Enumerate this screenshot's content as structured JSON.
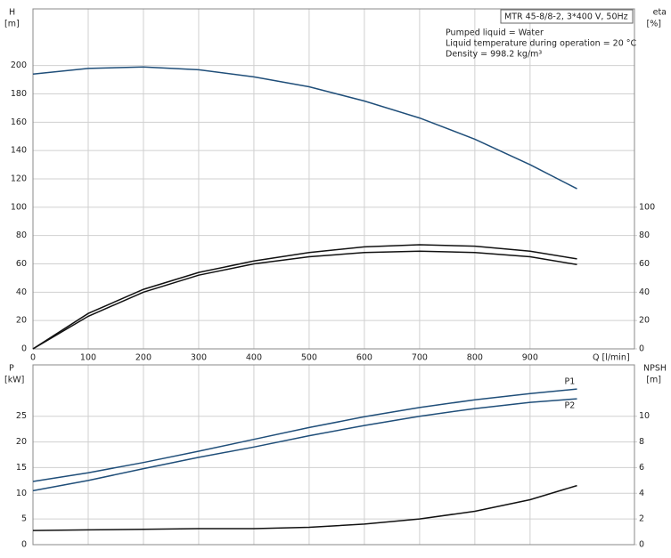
{
  "chart_data": [
    {
      "type": "line",
      "y_label": "H",
      "y_unit": "[m]",
      "y2_label": "eta",
      "y2_unit": "[%]",
      "x_label": "Q [l/min]",
      "annotations": [
        "MTR 45-8/8-2, 3*400 V, 50Hz",
        "Pumped liquid = Water",
        "Liquid temperature during operation = 20 °C",
        "Density = 998.2 kg/m³"
      ],
      "x": [
        0,
        100,
        200,
        300,
        400,
        500,
        600,
        700,
        800,
        900,
        985
      ],
      "series": [
        {
          "color": "#1f4e79",
          "values": [
            194,
            198,
            199,
            197,
            192,
            185,
            175,
            163,
            148,
            130,
            113
          ]
        },
        {
          "color": "#111111",
          "axis": "y2",
          "values": [
            0,
            25,
            42,
            54,
            62,
            68,
            72,
            73.5,
            72.5,
            69,
            63.5
          ]
        },
        {
          "color": "#111111",
          "axis": "y2",
          "values": [
            0,
            23,
            40,
            52,
            60,
            65,
            68,
            69,
            68,
            65,
            59.5
          ]
        }
      ],
      "xlim": [
        0,
        1089
      ],
      "xticks": [
        0,
        100,
        200,
        300,
        400,
        500,
        600,
        700,
        800,
        900
      ],
      "ylim": [
        0,
        240
      ],
      "yticks": [
        0,
        20,
        40,
        60,
        80,
        100,
        120,
        140,
        160,
        180,
        200
      ],
      "y2lim": [
        0,
        240
      ],
      "y2ticks": [
        0,
        20,
        40,
        60,
        80,
        100
      ],
      "grid": true
    },
    {
      "type": "line",
      "y_label": "P",
      "y_unit": "[kW]",
      "y2_label": "NPSH",
      "y2_unit": "[m]",
      "x": [
        0,
        100,
        200,
        300,
        400,
        500,
        600,
        700,
        800,
        900,
        985
      ],
      "series": [
        {
          "name": "P1",
          "color": "#1f4e79",
          "values": [
            12.3,
            14,
            16,
            18.2,
            20.5,
            22.8,
            24.9,
            26.7,
            28.2,
            29.4,
            30.3
          ]
        },
        {
          "name": "P2",
          "color": "#1f4e79",
          "values": [
            10.5,
            12.5,
            14.8,
            17,
            19,
            21.2,
            23.2,
            25,
            26.5,
            27.7,
            28.4
          ]
        },
        {
          "color": "#111111",
          "axis": "y2",
          "values": [
            1.1,
            1.15,
            1.2,
            1.25,
            1.25,
            1.35,
            1.6,
            2.0,
            2.6,
            3.5,
            4.6
          ]
        }
      ],
      "xlim": [
        0,
        1089
      ],
      "ylim": [
        0,
        35
      ],
      "yticks": [
        0,
        5,
        10,
        15,
        20,
        25
      ],
      "y2lim": [
        0,
        14
      ],
      "y2ticks": [
        0,
        2,
        4,
        6,
        8,
        10
      ],
      "grid": true
    }
  ]
}
